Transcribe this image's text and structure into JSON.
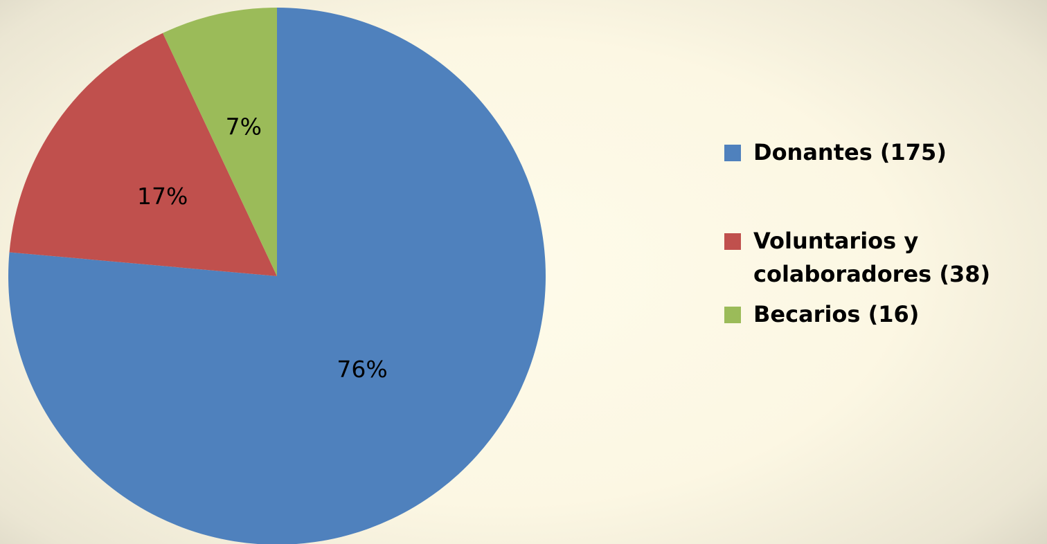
{
  "chart_data": {
    "type": "pie",
    "title": "",
    "legend_position": "right",
    "slices": [
      {
        "name": "Donantes (175)",
        "value": 175,
        "percent_label": "76%",
        "color": "#4f81bd"
      },
      {
        "name": "Voluntarios y colaboradores (38)",
        "value": 38,
        "percent_label": "17%",
        "color": "#c0504d"
      },
      {
        "name": "Becarios (16)",
        "value": 16,
        "percent_label": "7%",
        "color": "#9bbb59"
      }
    ]
  }
}
